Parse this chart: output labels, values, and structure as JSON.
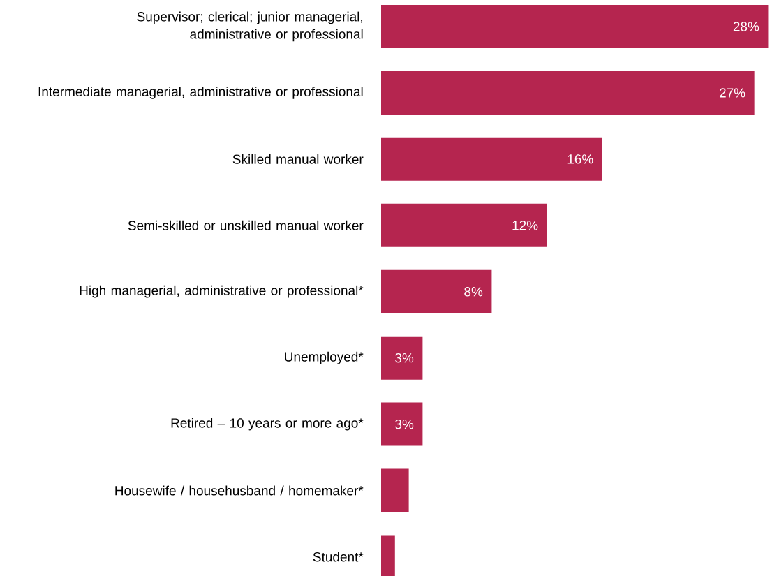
{
  "chart_data": {
    "type": "bar",
    "orientation": "horizontal",
    "color": "#b5254f",
    "categories": [
      "Supervisor; clerical; junior managerial, administrative or professional",
      "Intermediate managerial, administrative or professional",
      "Skilled manual worker",
      "Semi-skilled or unskilled manual worker",
      "High managerial, administrative or professional*",
      "Unemployed*",
      "Retired – 10 years or more ago*",
      "Housewife / househusband / homemaker*",
      "Student*"
    ],
    "values": [
      28,
      27,
      16,
      12,
      8,
      3,
      3,
      2,
      1
    ],
    "value_labels": [
      "28%",
      "27%",
      "16%",
      "12%",
      "8%",
      "3%",
      "3%",
      null,
      null
    ]
  }
}
